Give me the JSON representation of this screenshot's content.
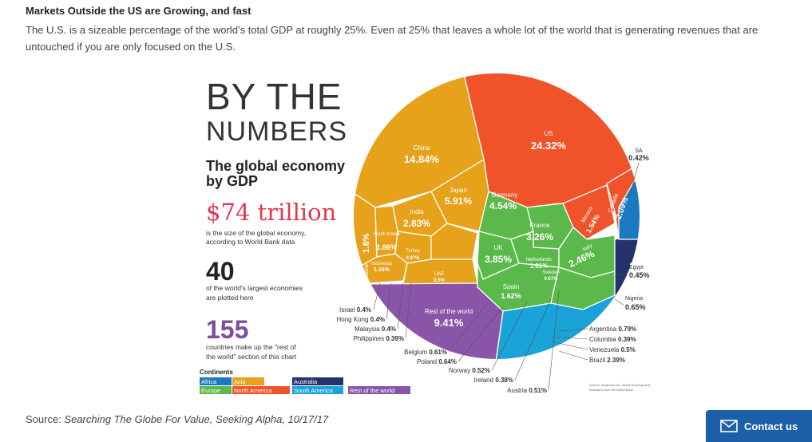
{
  "article": {
    "heading": "Markets Outside the US are Growing, and fast",
    "intro": "The U.S. is a sizeable percentage of the world’s total GDP at roughly 25%.  Even at 25% that leaves a whole lot of the world that is generating revenues that are untouched if you are only focused on the U.S.",
    "source_prefix": "Source: ",
    "source_title": "Searching The Globe For Value, Seeking Alpha, 10/17/17"
  },
  "contact_button": {
    "label": "Contact us",
    "icon": "envelope-icon"
  },
  "infographic": {
    "title_line1": "BY THE",
    "title_line2": "NUMBERS",
    "subtitle_line1": "The global economy",
    "subtitle_line2": "by GDP",
    "big_value": "$74 trillion",
    "big_value_caption_line1": "is the size of the global economy,",
    "big_value_caption_line2": "according to World Bank data",
    "count_value": "40",
    "count_caption_line1": "of the world's largest economies",
    "count_caption_line2": "are plotted here",
    "rest_value": "155",
    "rest_caption_line1": "countries make up the \"rest of",
    "rest_caption_line2": "the world\" section of this chart",
    "source_note_line1": "Source: howmuch.net, World Development",
    "source_note_line2": "Indicators from the World Bank",
    "legend_title": "Continents",
    "legend": [
      {
        "label": "Africa",
        "color": "#1a7abf"
      },
      {
        "label": "Asia",
        "color": "#e6a21a"
      },
      {
        "label": "Australia",
        "color": "#25336b"
      },
      {
        "label": "Europe",
        "color": "#5bb84a"
      },
      {
        "label": "North America",
        "color": "#f0532a"
      },
      {
        "label": "South America",
        "color": "#19a3d9"
      },
      {
        "label": "Rest of the world",
        "color": "#8a55a8"
      }
    ],
    "labels": {
      "us_name": "US",
      "us_value": "24.32%",
      "china_name": "China",
      "china_value": "14.84%",
      "japan_name": "Japan",
      "japan_value": "5.91%",
      "germany_name": "Germany",
      "germany_value": "4.54%",
      "india_name": "India",
      "india_value": "2.83%",
      "france_name": "France",
      "france_value": "3.26%",
      "uk_name": "UK",
      "uk_value": "3.85%",
      "italy_name": "Italy",
      "italy_value": "2.46%",
      "russia_name": "Russia",
      "russia_value": "1.8%",
      "korea_name": "South Korea",
      "korea_value": "1.86%",
      "indonesia_name": "Indonesia",
      "indonesia_value": "1.16%",
      "turkey_name": "Turkey",
      "turkey_value": "0.97%",
      "uae_name": "UAE",
      "uae_value": "0.5%",
      "netherlands_name": "Netherlands",
      "netherlands_value": "1.01%",
      "spain_name": "Spain",
      "spain_value": "1.62%",
      "sweden_name": "Sweden",
      "sweden_value": "0.67%",
      "mexico_name": "Mexico",
      "mexico_value": "1.54%",
      "canada_name": "Canada",
      "canada_value": "2.09%",
      "australia_name": "Australia",
      "australia_value": "1.81%",
      "rest_name": "Rest of the world",
      "rest_value": "9.41%",
      "sa_name": "SA",
      "sa_value": "0.42%",
      "egypt_name": "Egypt",
      "egypt_value": "0.45%",
      "nigeria_name": "Nigeria",
      "nigeria_value": "0.65%",
      "argentina_name": "Argentina",
      "argentina_value": "0.79%",
      "colombia_name": "Columbia",
      "colombia_value": "0.39%",
      "venezuela_name": "Venezuela",
      "venezuela_value": "0.5%",
      "brazil_name": "Brazil",
      "brazil_value": "2.39%",
      "israel_name": "Israel",
      "israel_value": "0.4%",
      "hongkong_name": "Hong Kong",
      "hongkong_value": "0.4%",
      "malaysia_name": "Malaysia",
      "malaysia_value": "0.4%",
      "philippines_name": "Philippines",
      "philippines_value": "0.39%",
      "belgium_name": "Belgium",
      "belgium_value": "0.61%",
      "poland_name": "Poland",
      "poland_value": "0.64%",
      "norway_name": "Norway",
      "norway_value": "0.52%",
      "ireland_name": "Ireland",
      "ireland_value": "0.38%",
      "austria_name": "Austria",
      "austria_value": "0.51%"
    }
  }
}
